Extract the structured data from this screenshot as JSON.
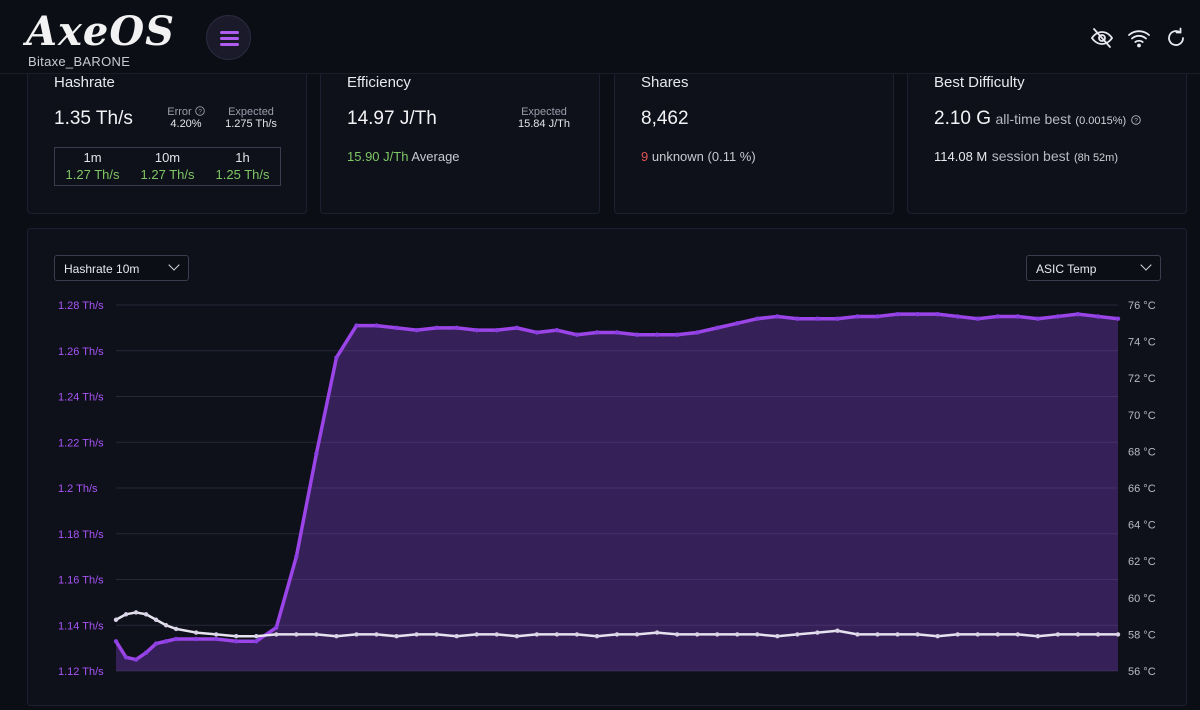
{
  "app": {
    "logo_text": "AxeOS",
    "device_name": "Bitaxe_BARONE",
    "icons": [
      "menu-icon",
      "eye-off-icon",
      "wifi-icon",
      "refresh-icon"
    ]
  },
  "cards": {
    "hashrate": {
      "title": "Hashrate",
      "value": "1.35 Th/s",
      "error_label": "Error",
      "error_value": "4.20%",
      "expected_label": "Expected",
      "expected_value": "1.275 Th/s",
      "averages": [
        {
          "label": "1m",
          "value": "1.27 Th/s"
        },
        {
          "label": "10m",
          "value": "1.27 Th/s"
        },
        {
          "label": "1h",
          "value": "1.25 Th/s"
        }
      ]
    },
    "efficiency": {
      "title": "Efficiency",
      "value": "14.97 J/Th",
      "expected_label": "Expected",
      "expected_value": "15.84 J/Th",
      "average_value": "15.90 J/Th",
      "average_label": "Average"
    },
    "shares": {
      "title": "Shares",
      "value": "8,462",
      "unknown_count": "9",
      "unknown_label": "unknown",
      "unknown_pct": "(0.11 %)"
    },
    "best_difficulty": {
      "title": "Best Difficulty",
      "value": "2.10 G",
      "alltime_label": "all-time best",
      "alltime_pct": "(0.0015%)",
      "session_value": "114.08 M",
      "session_label": "session best",
      "session_time": "(8h 52m)"
    }
  },
  "chart_panel": {
    "left_select": "Hashrate 10m",
    "right_select": "ASIC Temp"
  },
  "colors": {
    "accent": "#a855f7",
    "hashrate_line": "#9b45e8",
    "temp_line": "#e6e2ee",
    "good": "#7fc764",
    "bad": "#e05555"
  },
  "chart_data": {
    "type": "line",
    "y_left": {
      "ticks": [
        "1.28 Th/s",
        "1.26 Th/s",
        "1.24 Th/s",
        "1.22 Th/s",
        "1.2 Th/s",
        "1.18 Th/s",
        "1.16 Th/s",
        "1.14 Th/s",
        "1.12 Th/s"
      ],
      "ylim": [
        1.12,
        1.28
      ]
    },
    "y_right": {
      "ticks": [
        "76 °C",
        "74 °C",
        "72 °C",
        "70 °C",
        "68 °C",
        "66 °C",
        "64 °C",
        "62 °C",
        "60 °C",
        "58 °C",
        "56 °C"
      ],
      "ylim": [
        56,
        76
      ]
    },
    "grid": true,
    "xlim": [
      0,
      100
    ],
    "series": [
      {
        "name": "Hashrate 10m",
        "axis": "left",
        "fill": true,
        "x": [
          0,
          1,
          2,
          3,
          4,
          5,
          6,
          8,
          10,
          12,
          14,
          16,
          18,
          20,
          22,
          24,
          26,
          28,
          30,
          32,
          34,
          36,
          38,
          40,
          42,
          44,
          46,
          48,
          50,
          52,
          54,
          56,
          58,
          60,
          62,
          64,
          66,
          68,
          70,
          72,
          74,
          76,
          78,
          80,
          82,
          84,
          86,
          88,
          90,
          92,
          94,
          96,
          98,
          100
        ],
        "y": [
          1.133,
          1.126,
          1.125,
          1.128,
          1.132,
          1.133,
          1.134,
          1.134,
          1.134,
          1.133,
          1.133,
          1.139,
          1.17,
          1.215,
          1.257,
          1.271,
          1.271,
          1.27,
          1.269,
          1.27,
          1.27,
          1.269,
          1.269,
          1.27,
          1.268,
          1.269,
          1.267,
          1.268,
          1.268,
          1.267,
          1.267,
          1.267,
          1.268,
          1.27,
          1.272,
          1.274,
          1.275,
          1.274,
          1.274,
          1.274,
          1.275,
          1.275,
          1.276,
          1.276,
          1.276,
          1.275,
          1.274,
          1.275,
          1.275,
          1.274,
          1.275,
          1.276,
          1.275,
          1.274
        ]
      },
      {
        "name": "ASIC Temp",
        "axis": "right",
        "fill": false,
        "x": [
          0,
          1,
          2,
          3,
          4,
          5,
          6,
          8,
          10,
          12,
          14,
          16,
          18,
          20,
          22,
          24,
          26,
          28,
          30,
          32,
          34,
          36,
          38,
          40,
          42,
          44,
          46,
          48,
          50,
          52,
          54,
          56,
          58,
          60,
          62,
          64,
          66,
          68,
          70,
          72,
          74,
          76,
          78,
          80,
          82,
          84,
          86,
          88,
          90,
          92,
          94,
          96,
          98,
          100
        ],
        "y": [
          58.8,
          59.1,
          59.2,
          59.1,
          58.8,
          58.5,
          58.3,
          58.1,
          58.0,
          57.9,
          57.9,
          58.0,
          58.0,
          58.0,
          57.9,
          58.0,
          58.0,
          57.9,
          58.0,
          58.0,
          57.9,
          58.0,
          58.0,
          57.9,
          58.0,
          58.0,
          58.0,
          57.9,
          58.0,
          58.0,
          58.1,
          58.0,
          58.0,
          58.0,
          58.0,
          58.0,
          57.9,
          58.0,
          58.1,
          58.2,
          58.0,
          58.0,
          58.0,
          58.0,
          57.9,
          58.0,
          58.0,
          58.0,
          58.0,
          57.9,
          58.0,
          58.0,
          58.0,
          58.0
        ]
      }
    ]
  }
}
